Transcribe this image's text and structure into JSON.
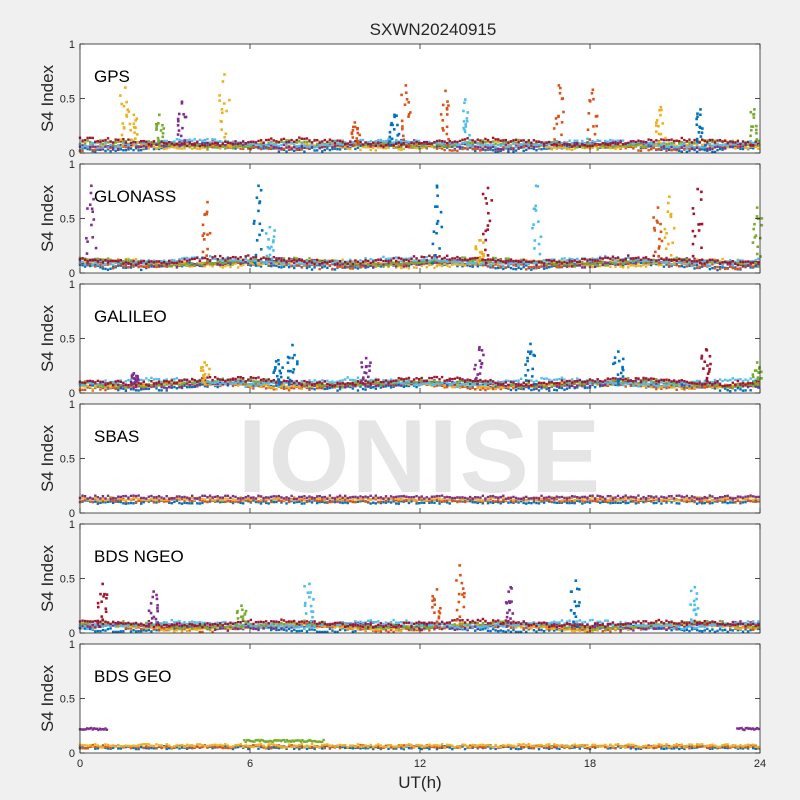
{
  "figure": {
    "title": "SXWN20240915",
    "watermark": "IONISE",
    "background": "#f0f0f0",
    "axes_background": "#ffffff",
    "series_colors": [
      "#0072BD",
      "#D95319",
      "#EDB120",
      "#7E2F8E",
      "#77AC30",
      "#4DBEEE",
      "#A2142F"
    ]
  },
  "chart_data": [
    {
      "type": "scatter",
      "panel_label": "GPS",
      "ylabel": "S4 Index",
      "xlim": [
        0,
        24
      ],
      "ylim": [
        0,
        1
      ],
      "yticks": [
        "0",
        "0.5",
        "1"
      ],
      "baseline": 0.07,
      "spikes": [
        {
          "x": 1.6,
          "y": 0.6,
          "c": 2
        },
        {
          "x": 1.9,
          "y": 0.35,
          "c": 2
        },
        {
          "x": 2.8,
          "y": 0.35,
          "c": 4
        },
        {
          "x": 3.6,
          "y": 0.47,
          "c": 3
        },
        {
          "x": 5.1,
          "y": 0.72,
          "c": 2
        },
        {
          "x": 9.7,
          "y": 0.28,
          "c": 1
        },
        {
          "x": 11.1,
          "y": 0.35,
          "c": 0
        },
        {
          "x": 11.5,
          "y": 0.62,
          "c": 1
        },
        {
          "x": 12.9,
          "y": 0.57,
          "c": 1
        },
        {
          "x": 13.6,
          "y": 0.49,
          "c": 5
        },
        {
          "x": 16.9,
          "y": 0.62,
          "c": 1
        },
        {
          "x": 18.1,
          "y": 0.58,
          "c": 1
        },
        {
          "x": 20.5,
          "y": 0.42,
          "c": 2
        },
        {
          "x": 21.9,
          "y": 0.4,
          "c": 0
        },
        {
          "x": 23.8,
          "y": 0.4,
          "c": 4
        }
      ]
    },
    {
      "type": "scatter",
      "panel_label": "GLONASS",
      "ylabel": "S4 Index",
      "xlim": [
        0,
        24
      ],
      "ylim": [
        0,
        1
      ],
      "yticks": [
        "0",
        "0.5",
        "1"
      ],
      "baseline": 0.09,
      "spikes": [
        {
          "x": 0.4,
          "y": 0.8,
          "c": 3
        },
        {
          "x": 4.5,
          "y": 0.65,
          "c": 1
        },
        {
          "x": 6.3,
          "y": 0.8,
          "c": 0
        },
        {
          "x": 6.7,
          "y": 0.42,
          "c": 5
        },
        {
          "x": 12.6,
          "y": 0.8,
          "c": 0
        },
        {
          "x": 14.4,
          "y": 0.78,
          "c": 6
        },
        {
          "x": 14.1,
          "y": 0.3,
          "c": 2
        },
        {
          "x": 16.1,
          "y": 0.8,
          "c": 5
        },
        {
          "x": 20.4,
          "y": 0.6,
          "c": 1
        },
        {
          "x": 20.8,
          "y": 0.7,
          "c": 2
        },
        {
          "x": 21.8,
          "y": 0.77,
          "c": 6
        },
        {
          "x": 23.9,
          "y": 0.6,
          "c": 4
        }
      ]
    },
    {
      "type": "scatter",
      "panel_label": "GALILEO",
      "ylabel": "S4 Index",
      "xlim": [
        0,
        24
      ],
      "ylim": [
        0,
        1
      ],
      "yticks": [
        "0",
        "0.5",
        "1"
      ],
      "baseline": 0.08,
      "spikes": [
        {
          "x": 1.9,
          "y": 0.18,
          "c": 3
        },
        {
          "x": 4.4,
          "y": 0.28,
          "c": 2
        },
        {
          "x": 7.0,
          "y": 0.3,
          "c": 0
        },
        {
          "x": 7.5,
          "y": 0.44,
          "c": 0
        },
        {
          "x": 10.1,
          "y": 0.32,
          "c": 3
        },
        {
          "x": 14.1,
          "y": 0.42,
          "c": 3
        },
        {
          "x": 15.9,
          "y": 0.45,
          "c": 0
        },
        {
          "x": 19.0,
          "y": 0.38,
          "c": 0
        },
        {
          "x": 22.1,
          "y": 0.4,
          "c": 6
        },
        {
          "x": 23.9,
          "y": 0.28,
          "c": 4
        }
      ]
    },
    {
      "type": "scatter",
      "panel_label": "SBAS",
      "ylabel": "S4 Index",
      "xlim": [
        0,
        24
      ],
      "ylim": [
        0,
        1
      ],
      "yticks": [
        "0",
        "0.5",
        "1"
      ],
      "baseline": 0.12,
      "spikes": []
    },
    {
      "type": "scatter",
      "panel_label": "BDS NGEO",
      "ylabel": "S4 Index",
      "xlim": [
        0,
        24
      ],
      "ylim": [
        0,
        1
      ],
      "yticks": [
        "0",
        "0.5",
        "1"
      ],
      "baseline": 0.06,
      "spikes": [
        {
          "x": 0.8,
          "y": 0.45,
          "c": 6
        },
        {
          "x": 2.6,
          "y": 0.38,
          "c": 3
        },
        {
          "x": 5.7,
          "y": 0.25,
          "c": 4
        },
        {
          "x": 8.1,
          "y": 0.45,
          "c": 5
        },
        {
          "x": 12.6,
          "y": 0.4,
          "c": 1
        },
        {
          "x": 13.4,
          "y": 0.62,
          "c": 1
        },
        {
          "x": 15.2,
          "y": 0.42,
          "c": 3
        },
        {
          "x": 17.5,
          "y": 0.48,
          "c": 0
        },
        {
          "x": 21.7,
          "y": 0.42,
          "c": 5
        }
      ]
    },
    {
      "type": "scatter",
      "panel_label": "BDS GEO",
      "ylabel": "S4 Index",
      "xlim": [
        0,
        24
      ],
      "ylim": [
        0,
        1
      ],
      "yticks": [
        "0",
        "0.5",
        "1"
      ],
      "baseline": 0.07,
      "spikes": [],
      "plateaus": [
        {
          "x0": 0.0,
          "x1": 1.0,
          "y": 0.22,
          "c": 3
        },
        {
          "x0": 23.2,
          "y": 0.22,
          "x1": 24.0,
          "c": 3
        },
        {
          "x0": 5.8,
          "x1": 8.6,
          "y": 0.11,
          "c": 4
        }
      ]
    }
  ],
  "x_axis": {
    "label": "UT(h)",
    "ticks": [
      "0",
      "6",
      "12",
      "18",
      "24"
    ]
  }
}
